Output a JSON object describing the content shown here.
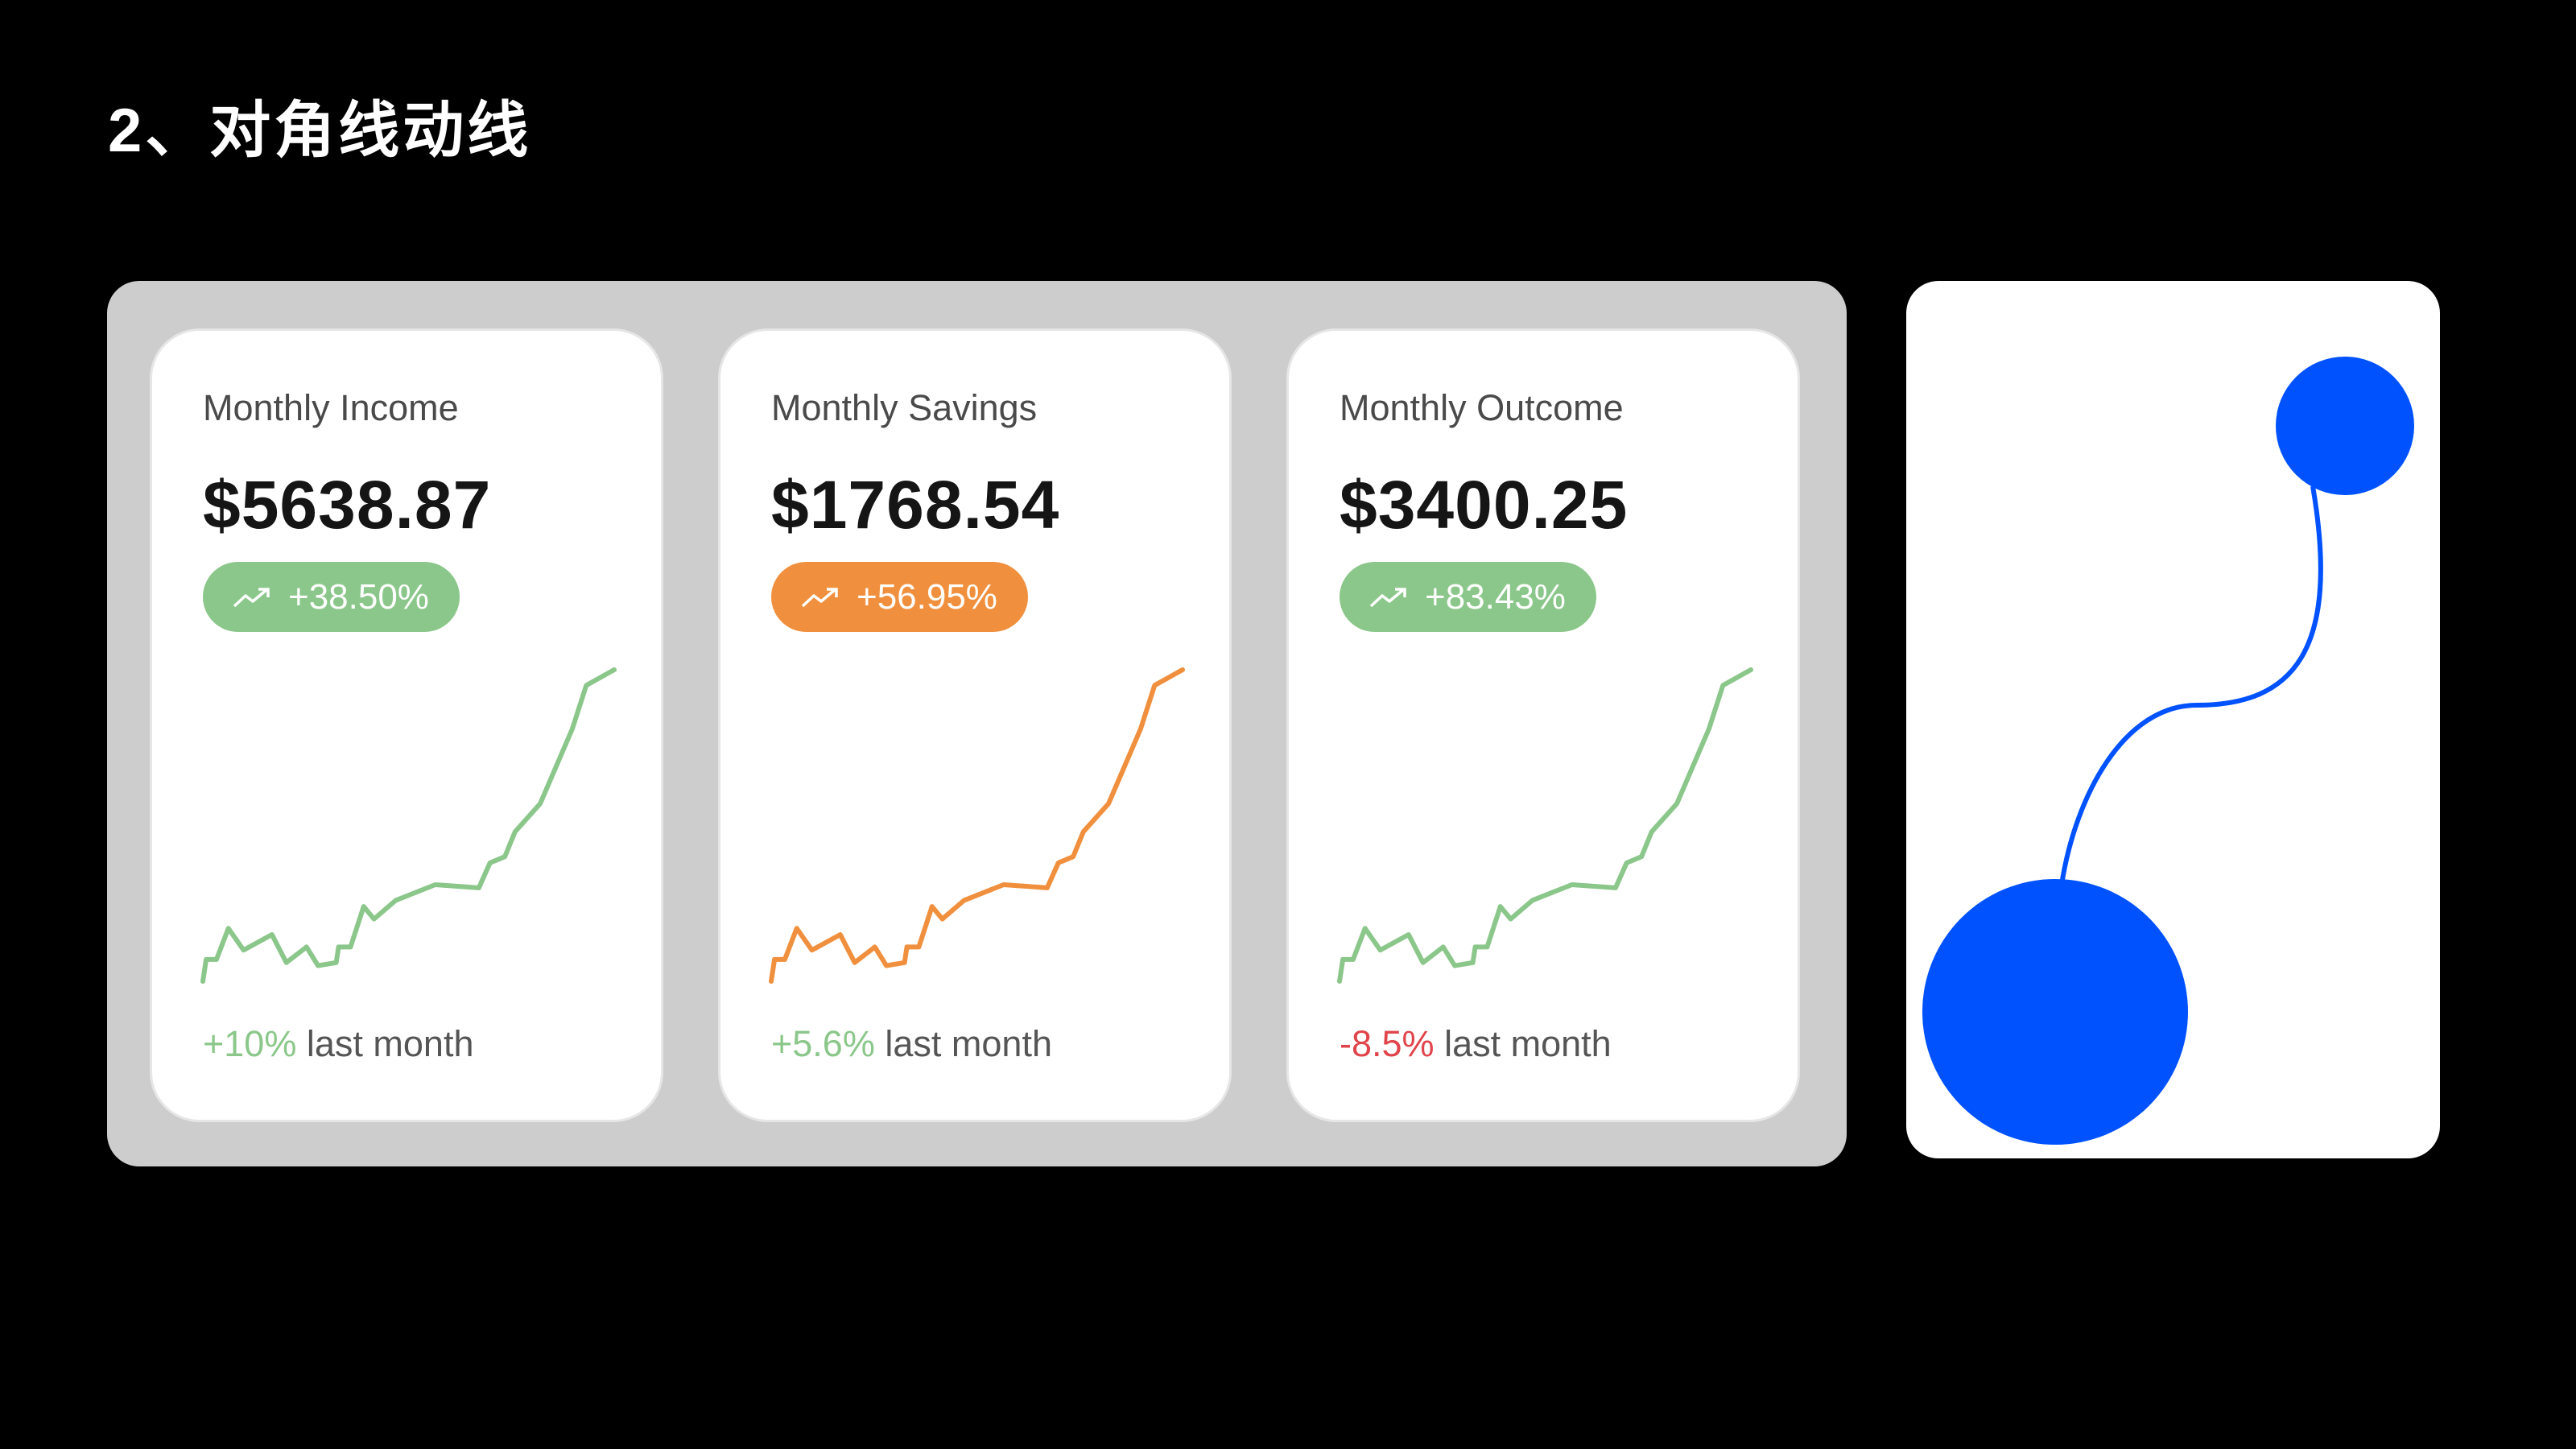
{
  "title": "2、对角线动线",
  "colors": {
    "green": "#8BC78A",
    "orange": "#F0903E",
    "red": "#E0454B",
    "blue": "#0052FF",
    "panel": "#CDCDCD"
  },
  "cards": [
    {
      "label": "Monthly Income",
      "value": "$5638.87",
      "badge": "+38.50%",
      "badge_icon": "trending-up-icon",
      "badge_color": "#8BC78A",
      "line_color": "#8BC78A",
      "change": "+10%",
      "change_color": "#8BC78A",
      "suffix": "last month"
    },
    {
      "label": "Monthly Savings",
      "value": "$1768.54",
      "badge": "+56.95%",
      "badge_icon": "trending-up-icon",
      "badge_color": "#F0903E",
      "line_color": "#F0903E",
      "change": "+5.6%",
      "change_color": "#8BC78A",
      "suffix": "last month"
    },
    {
      "label": "Monthly Outcome",
      "value": "$3400.25",
      "badge": "+83.43%",
      "badge_icon": "trending-up-icon",
      "badge_color": "#8BC78A",
      "line_color": "#8BC78A",
      "change": "-8.5%",
      "change_color": "#E0454B",
      "suffix": "last month"
    }
  ],
  "chart_data": {
    "type": "line",
    "x": [
      0,
      0.8,
      3.3,
      6.2,
      9.9,
      16.8,
      20.3,
      25.2,
      28,
      32.4,
      33,
      35.9,
      39.1,
      41.6,
      46.9,
      56.5,
      67.1,
      69.8,
      73.4,
      75.9,
      82,
      89.8,
      93.2,
      100
    ],
    "y": [
      0,
      7,
      7,
      17,
      10,
      15,
      6,
      11,
      5,
      6,
      11,
      11,
      24,
      20,
      26,
      31,
      30,
      38,
      40,
      48,
      57,
      81,
      95,
      100
    ],
    "grid": false
  }
}
